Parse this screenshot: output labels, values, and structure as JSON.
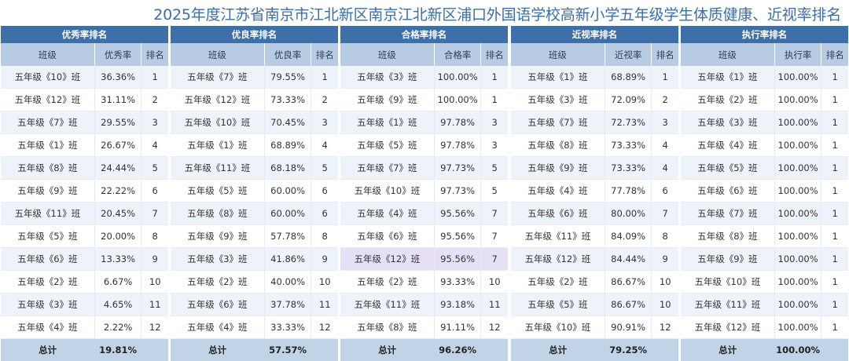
{
  "title": "2025年度江苏省南京市江北新区南京江北新区浦口外国语学校高新小学五年级学生体质健康、近视率排名",
  "tables": [
    {
      "caption": "优秀率排名",
      "headers": [
        "班级",
        "优秀率",
        "排名"
      ],
      "rows": [
        [
          "五年级《10》班",
          "36.36%",
          "1"
        ],
        [
          "五年级《12》班",
          "31.11%",
          "2"
        ],
        [
          "五年级《7》班",
          "29.55%",
          "3"
        ],
        [
          "五年级《1》班",
          "26.67%",
          "4"
        ],
        [
          "五年级《8》班",
          "24.44%",
          "5"
        ],
        [
          "五年级《9》班",
          "22.22%",
          "6"
        ],
        [
          "五年级《11》班",
          "20.45%",
          "7"
        ],
        [
          "五年级《5》班",
          "20.00%",
          "8"
        ],
        [
          "五年级《6》班",
          "13.33%",
          "9"
        ],
        [
          "五年级《2》班",
          "6.67%",
          "10"
        ],
        [
          "五年级《3》班",
          "4.65%",
          "11"
        ],
        [
          "五年级《4》班",
          "2.22%",
          "12"
        ]
      ],
      "total": [
        "总计",
        "19.81%"
      ]
    },
    {
      "caption": "优良率排名",
      "headers": [
        "班级",
        "优良率",
        "排名"
      ],
      "rows": [
        [
          "五年级《7》班",
          "79.55%",
          "1"
        ],
        [
          "五年级《12》班",
          "73.33%",
          "2"
        ],
        [
          "五年级《10》班",
          "70.45%",
          "3"
        ],
        [
          "五年级《1》班",
          "68.89%",
          "4"
        ],
        [
          "五年级《11》班",
          "68.18%",
          "5"
        ],
        [
          "五年级《5》班",
          "60.00%",
          "6"
        ],
        [
          "五年级《8》班",
          "60.00%",
          "6"
        ],
        [
          "五年级《9》班",
          "57.78%",
          "8"
        ],
        [
          "五年级《3》班",
          "41.86%",
          "9"
        ],
        [
          "五年级《2》班",
          "40.00%",
          "10"
        ],
        [
          "五年级《6》班",
          "37.78%",
          "11"
        ],
        [
          "五年级《4》班",
          "33.33%",
          "12"
        ]
      ],
      "total": [
        "总计",
        "57.57%"
      ]
    },
    {
      "caption": "合格率排名",
      "headers": [
        "班级",
        "合格率",
        "排名"
      ],
      "rows": [
        [
          "五年级《3》班",
          "100.00%",
          "1"
        ],
        [
          "五年级《9》班",
          "100.00%",
          "1"
        ],
        [
          "五年级《1》班",
          "97.78%",
          "3"
        ],
        [
          "五年级《5》班",
          "97.78%",
          "3"
        ],
        [
          "五年级《7》班",
          "97.73%",
          "5"
        ],
        [
          "五年级《10》班",
          "97.73%",
          "5"
        ],
        [
          "五年级《4》班",
          "95.56%",
          "7"
        ],
        [
          "五年级《6》班",
          "95.56%",
          "7"
        ],
        [
          "五年级《12》班",
          "95.56%",
          "7"
        ],
        [
          "五年级《2》班",
          "93.33%",
          "10"
        ],
        [
          "五年级《11》班",
          "93.18%",
          "11"
        ],
        [
          "五年级《8》班",
          "91.11%",
          "12"
        ]
      ],
      "total": [
        "总计",
        "96.26%"
      ]
    },
    {
      "caption": "近视率排名",
      "headers": [
        "班级",
        "近视率",
        "排名"
      ],
      "rows": [
        [
          "五年级《1》班",
          "68.89%",
          "1"
        ],
        [
          "五年级《3》班",
          "72.09%",
          "2"
        ],
        [
          "五年级《7》班",
          "72.73%",
          "3"
        ],
        [
          "五年级《8》班",
          "73.33%",
          "4"
        ],
        [
          "五年级《9》班",
          "73.33%",
          "4"
        ],
        [
          "五年级《4》班",
          "77.78%",
          "6"
        ],
        [
          "五年级《6》班",
          "80.00%",
          "7"
        ],
        [
          "五年级《11》班",
          "84.09%",
          "8"
        ],
        [
          "五年级《12》班",
          "84.44%",
          "9"
        ],
        [
          "五年级《2》班",
          "86.67%",
          "10"
        ],
        [
          "五年级《5》班",
          "86.67%",
          "10"
        ],
        [
          "五年级《10》班",
          "90.91%",
          "12"
        ]
      ],
      "total": [
        "总计",
        "79.25%"
      ]
    },
    {
      "caption": "执行率排名",
      "headers": [
        "班级",
        "执行率",
        "排名"
      ],
      "rows": [
        [
          "五年级《1》班",
          "100.00%",
          "1"
        ],
        [
          "五年级《2》班",
          "100.00%",
          "1"
        ],
        [
          "五年级《3》班",
          "100.00%",
          "1"
        ],
        [
          "五年级《4》班",
          "100.00%",
          "1"
        ],
        [
          "五年级《5》班",
          "100.00%",
          "1"
        ],
        [
          "五年级《6》班",
          "100.00%",
          "1"
        ],
        [
          "五年级《7》班",
          "100.00%",
          "1"
        ],
        [
          "五年级《8》班",
          "100.00%",
          "1"
        ],
        [
          "五年级《9》班",
          "100.00%",
          "1"
        ],
        [
          "五年级《10》班",
          "100.00%",
          "1"
        ],
        [
          "五年级《11》班",
          "100.00%",
          "1"
        ],
        [
          "五年级《12》班",
          "100.00%",
          "1"
        ]
      ],
      "total": [
        "总计",
        "100.00%"
      ]
    }
  ],
  "highlight": {
    "table": 2,
    "row": 8,
    "color": "#e6e0f6"
  }
}
